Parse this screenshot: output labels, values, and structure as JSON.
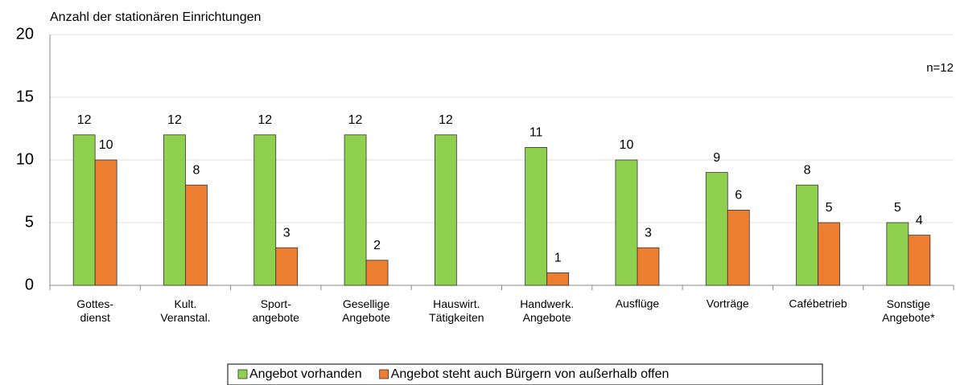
{
  "chart_data": {
    "type": "bar",
    "y_axis_label": "Anzahl der stationären Einrichtungen",
    "annotation": "n=12",
    "categories": [
      "Gottes-\ndienst",
      "Kult.\nVeranstal.",
      "Sport-\nangebote",
      "Gesellige\nAngebote",
      "Hauswirt.\nTätigkeiten",
      "Handwerk.\nAngebote",
      "Ausflüge",
      "Vorträge",
      "Cafébetrieb",
      "Sonstige\nAngebote*"
    ],
    "series": [
      {
        "name": "Angebot vorhanden",
        "color": "#8fd14f",
        "values": [
          12,
          12,
          12,
          12,
          12,
          11,
          10,
          9,
          8,
          5
        ]
      },
      {
        "name": "Angebot steht auch Bürgern von außerhalb offen",
        "color": "#ed7d31",
        "values": [
          10,
          8,
          3,
          2,
          null,
          1,
          3,
          6,
          5,
          4
        ]
      }
    ],
    "ylim": [
      0,
      20
    ],
    "yticks": [
      0,
      5,
      10,
      15,
      20
    ],
    "grid": true,
    "legend": "bottom"
  }
}
